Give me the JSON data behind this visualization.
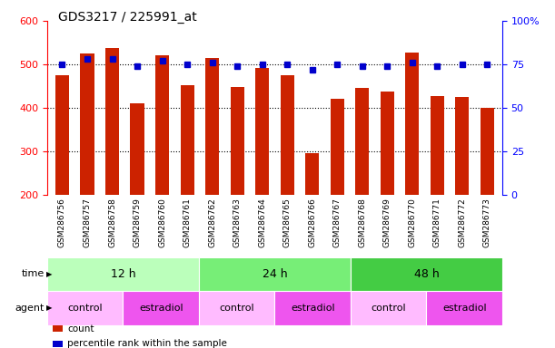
{
  "title": "GDS3217 / 225991_at",
  "samples": [
    "GSM286756",
    "GSM286757",
    "GSM286758",
    "GSM286759",
    "GSM286760",
    "GSM286761",
    "GSM286762",
    "GSM286763",
    "GSM286764",
    "GSM286765",
    "GSM286766",
    "GSM286767",
    "GSM286768",
    "GSM286769",
    "GSM286770",
    "GSM286771",
    "GSM286772",
    "GSM286773"
  ],
  "counts": [
    475,
    525,
    538,
    410,
    520,
    452,
    515,
    447,
    492,
    475,
    295,
    420,
    445,
    437,
    528,
    428,
    425,
    400
  ],
  "percentiles": [
    75,
    78,
    78,
    74,
    77,
    75,
    76,
    74,
    75,
    75,
    72,
    75,
    74,
    74,
    76,
    74,
    75,
    75
  ],
  "ymin": 200,
  "ymax": 600,
  "yticks": [
    200,
    300,
    400,
    500,
    600
  ],
  "right_yticks": [
    0,
    25,
    50,
    75,
    100
  ],
  "bar_color": "#CC2200",
  "dot_color": "#0000CC",
  "bar_width": 0.55,
  "time_groups": [
    {
      "label": "12 h",
      "start": 0,
      "end": 6,
      "color": "#BBFFBB"
    },
    {
      "label": "24 h",
      "start": 6,
      "end": 12,
      "color": "#77EE77"
    },
    {
      "label": "48 h",
      "start": 12,
      "end": 18,
      "color": "#44CC44"
    }
  ],
  "agent_groups": [
    {
      "label": "control",
      "start": 0,
      "end": 3,
      "color": "#FFBBFF"
    },
    {
      "label": "estradiol",
      "start": 3,
      "end": 6,
      "color": "#EE55EE"
    },
    {
      "label": "control",
      "start": 6,
      "end": 9,
      "color": "#FFBBFF"
    },
    {
      "label": "estradiol",
      "start": 9,
      "end": 12,
      "color": "#EE55EE"
    },
    {
      "label": "control",
      "start": 12,
      "end": 15,
      "color": "#FFBBFF"
    },
    {
      "label": "estradiol",
      "start": 15,
      "end": 18,
      "color": "#EE55EE"
    }
  ],
  "legend_items": [
    {
      "label": "count",
      "color": "#CC2200"
    },
    {
      "label": "percentile rank within the sample",
      "color": "#0000CC"
    }
  ],
  "xlabel_fontsize": 6.5,
  "title_fontsize": 10,
  "tick_label_color": "#CCCCCC"
}
